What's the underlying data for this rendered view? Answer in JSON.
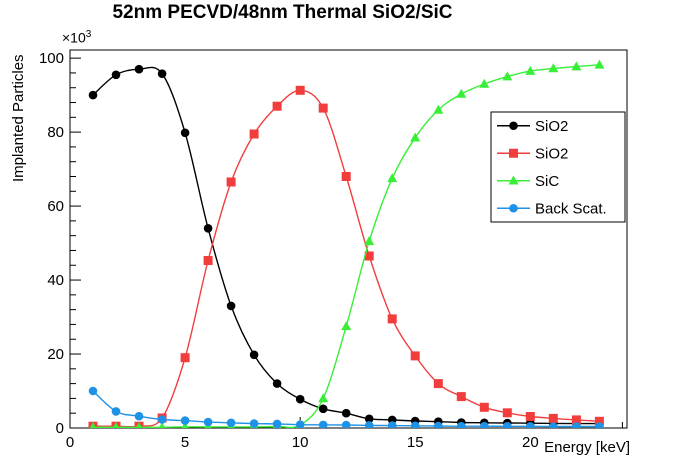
{
  "title": "52nm PECVD/48nm Thermal SiO2/SiC",
  "axes": {
    "x_label": "Energy [keV]",
    "y_label": "Implanted Particles",
    "y_multiplier_base": "×10",
    "y_multiplier_exponent": "3"
  },
  "legend": {
    "entries": [
      {
        "label": "SiO2",
        "color": "#000000",
        "marker": "circle"
      },
      {
        "label": "SiO2",
        "color": "#f23d3d",
        "marker": "square"
      },
      {
        "label": "SiC",
        "color": "#38ef38",
        "marker": "triangle"
      },
      {
        "label": "Back Scat.",
        "color": "#1e92e6",
        "marker": "circle"
      }
    ]
  },
  "colors": {
    "frame": "#000000",
    "background": "#ffffff",
    "series_black": "#000000",
    "series_red": "#f23d3d",
    "series_green": "#38ef38",
    "series_blue": "#1e92e6"
  },
  "chart_data": {
    "type": "line",
    "title": "52nm PECVD/48nm Thermal SiO2/SiC",
    "xlabel": "Energy [keV]",
    "ylabel": "Implanted Particles",
    "y_values_unit": "thousands (axis shows ×10³)",
    "xlim": [
      0,
      24.2
    ],
    "ylim": [
      0,
      102.2
    ],
    "x_major_ticks": [
      0,
      5,
      10,
      15,
      20
    ],
    "y_major_ticks": [
      0,
      20,
      40,
      60,
      80,
      100
    ],
    "x_minor_step": 1,
    "y_minor_step": 4,
    "grid": false,
    "legend_position": "middle-right",
    "x": [
      1,
      2,
      3,
      4,
      5,
      6,
      7,
      8,
      9,
      10,
      11,
      12,
      13,
      14,
      15,
      16,
      17,
      18,
      19,
      20,
      21,
      22,
      23
    ],
    "series": [
      {
        "name": "SiO2",
        "color": "#000000",
        "marker": "circle",
        "values": [
          90,
          95.5,
          97,
          95.8,
          79.8,
          54,
          33,
          19.8,
          12,
          7.8,
          5.2,
          4,
          2.5,
          2.2,
          1.9,
          1.7,
          1.5,
          1.4,
          1.35,
          1.3,
          1.25,
          1.2,
          1.2
        ]
      },
      {
        "name": "SiO2",
        "color": "#f23d3d",
        "marker": "square",
        "values": [
          0.5,
          0.5,
          0.5,
          2.7,
          19,
          45.3,
          66.5,
          79.5,
          87,
          91.3,
          86.5,
          68,
          46.5,
          29.5,
          19.5,
          12,
          8.5,
          5.6,
          4.1,
          3.1,
          2.6,
          2.2,
          1.8
        ]
      },
      {
        "name": "SiC",
        "color": "#38ef38",
        "marker": "triangle",
        "values": [
          0.2,
          0.2,
          0.2,
          0.2,
          0.3,
          0.3,
          0.3,
          0.3,
          0.4,
          0.8,
          8,
          27.5,
          50.5,
          67.5,
          78.5,
          86,
          90.3,
          93,
          95,
          96.5,
          97.2,
          97.7,
          98.2
        ]
      },
      {
        "name": "Back Scat.",
        "color": "#1e92e6",
        "marker": "circle",
        "values": [
          10,
          4.5,
          3.2,
          2.3,
          2,
          1.6,
          1.4,
          1.2,
          1.1,
          0.9,
          0.85,
          0.8,
          0.7,
          0.65,
          0.6,
          0.55,
          0.5,
          0.5,
          0.45,
          0.45,
          0.4,
          0.4,
          0.4
        ]
      }
    ]
  }
}
